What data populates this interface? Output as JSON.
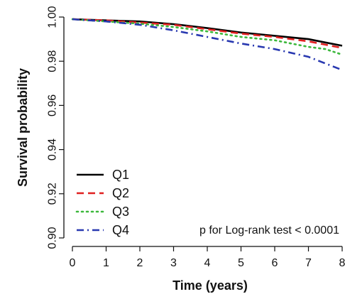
{
  "chart_data": {
    "type": "line",
    "title": "",
    "xlabel": "Time (years)",
    "ylabel": "Survival probability",
    "xlim": [
      0,
      8
    ],
    "ylim": [
      0.9,
      1.0
    ],
    "xticks": [
      0,
      1,
      2,
      3,
      4,
      5,
      6,
      7,
      8
    ],
    "yticks": [
      0.9,
      0.92,
      0.94,
      0.96,
      0.98,
      1.0
    ],
    "ytick_labels": [
      "0.90",
      "0.92",
      "0.94",
      "0.96",
      "0.98",
      "1.00"
    ],
    "grid": false,
    "legend": "bottom-left",
    "annotation": "p for Log-rank test < 0.0001",
    "series": [
      {
        "name": "Q1",
        "color": "#000000",
        "dash": "solid",
        "x": [
          0,
          1,
          2,
          3,
          4,
          5,
          6,
          7,
          7.5,
          8
        ],
        "y": [
          0.999,
          0.9985,
          0.998,
          0.9968,
          0.995,
          0.993,
          0.9915,
          0.99,
          0.9885,
          0.987
        ]
      },
      {
        "name": "Q2",
        "color": "#e02020",
        "dash": "dashed",
        "x": [
          0,
          1,
          2,
          3,
          4,
          5,
          6,
          7,
          7.5,
          8
        ],
        "y": [
          0.999,
          0.9985,
          0.9975,
          0.9965,
          0.9945,
          0.9925,
          0.991,
          0.989,
          0.9875,
          0.986
        ]
      },
      {
        "name": "Q3",
        "color": "#3cb83c",
        "dash": "dotted",
        "x": [
          0,
          1,
          2,
          3,
          4,
          5,
          6,
          7,
          7.5,
          8
        ],
        "y": [
          0.999,
          0.998,
          0.997,
          0.9955,
          0.9935,
          0.991,
          0.9895,
          0.9865,
          0.9855,
          0.983
        ]
      },
      {
        "name": "Q4",
        "color": "#2838b0",
        "dash": "dashdot",
        "x": [
          0,
          1,
          2,
          3,
          4,
          5,
          6,
          7,
          7.5,
          8
        ],
        "y": [
          0.999,
          0.998,
          0.9965,
          0.994,
          0.991,
          0.988,
          0.9855,
          0.982,
          0.979,
          0.976
        ]
      }
    ]
  }
}
